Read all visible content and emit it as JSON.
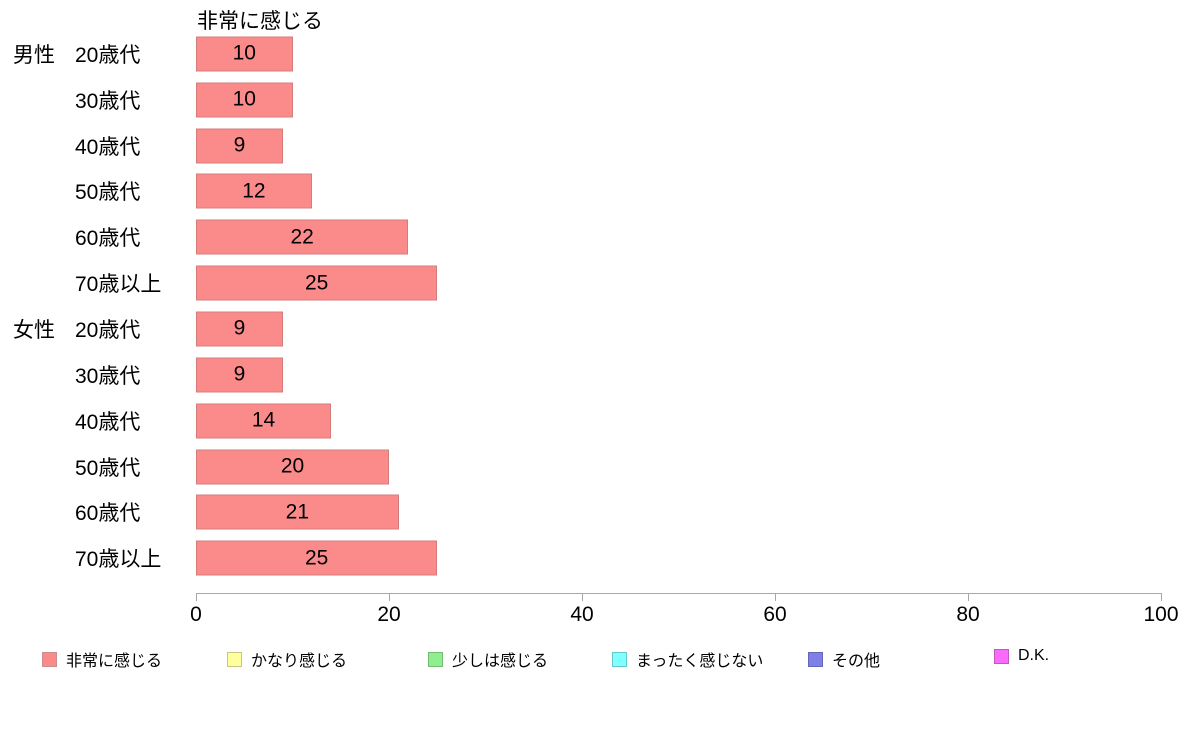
{
  "chart_data": {
    "type": "bar",
    "orientation": "horizontal",
    "title": "非常に感じる",
    "categories": [
      "男性 20歳代",
      "30歳代",
      "40歳代",
      "50歳代",
      "60歳代",
      "70歳以上",
      "女性 20歳代",
      "30歳代",
      "40歳代",
      "50歳代",
      "60歳代",
      "70歳以上"
    ],
    "rows": [
      {
        "gender": "男性",
        "age": "20歳代",
        "value": 10
      },
      {
        "gender": "",
        "age": "30歳代",
        "value": 10
      },
      {
        "gender": "",
        "age": "40歳代",
        "value": 9
      },
      {
        "gender": "",
        "age": "50歳代",
        "value": 12
      },
      {
        "gender": "",
        "age": "60歳代",
        "value": 22
      },
      {
        "gender": "",
        "age": "70歳以上",
        "value": 25
      },
      {
        "gender": "女性",
        "age": "20歳代",
        "value": 9
      },
      {
        "gender": "",
        "age": "30歳代",
        "value": 9
      },
      {
        "gender": "",
        "age": "40歳代",
        "value": 14
      },
      {
        "gender": "",
        "age": "50歳代",
        "value": 20
      },
      {
        "gender": "",
        "age": "60歳代",
        "value": 21
      },
      {
        "gender": "",
        "age": "70歳以上",
        "value": 25
      }
    ],
    "xlim": [
      0,
      100
    ],
    "x_ticks": [
      0,
      20,
      40,
      60,
      80,
      100
    ],
    "grid": false,
    "legend_position": "bottom",
    "bar_fill": "#FB8B8B",
    "bar_border": "#D47C7C",
    "axis_color": "#a8a8a8",
    "legend": [
      {
        "label": "非常に感じる",
        "fill": "#FB8B8B",
        "border": "#C98F8F"
      },
      {
        "label": "かなり感じる",
        "fill": "#FFFF9E",
        "border": "#C6C67C"
      },
      {
        "label": "少しは感じる",
        "fill": "#8FEE8F",
        "border": "#74BC74"
      },
      {
        "label": "まったく感じない",
        "fill": "#80FFFF",
        "border": "#66C9C9"
      },
      {
        "label": "その他",
        "fill": "#7F7FE8",
        "border": "#6666B8"
      },
      {
        "label": "D.K.",
        "fill": "#FA6BFA",
        "border": "#C455C4"
      }
    ]
  }
}
